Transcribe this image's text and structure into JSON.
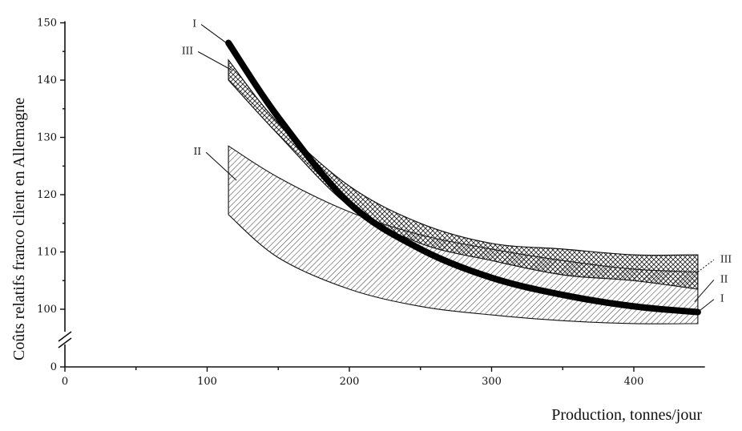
{
  "chart_data": {
    "type": "area",
    "xlabel": "Production, tonnes/jour",
    "ylabel": "Coûts relatifs franco client en Allemagne",
    "x_ticks": [
      "0",
      "100",
      "200",
      "300",
      "400"
    ],
    "y_ticks": [
      "0",
      "100",
      "110",
      "120",
      "130",
      "140",
      "150"
    ],
    "xlim": [
      0,
      450
    ],
    "ylim": [
      90,
      150
    ],
    "y_axis_break": true,
    "grid": false,
    "x": [
      115,
      150,
      200,
      250,
      300,
      350,
      400,
      445
    ],
    "series": [
      {
        "name": "I",
        "kind": "thick-line",
        "color": "#000000",
        "values": [
          146.5,
          133.5,
          118.5,
          110.5,
          105.5,
          102.5,
          100.5,
          99.5
        ]
      },
      {
        "name": "II",
        "kind": "band",
        "color": "#333333",
        "upper": [
          128.5,
          123,
          117,
          113,
          110.5,
          108.5,
          107,
          106.5
        ],
        "lower": [
          116.5,
          109,
          103.5,
          100.5,
          99,
          98,
          97.5,
          97.5
        ]
      },
      {
        "name": "III",
        "kind": "band",
        "color": "#333333",
        "upper": [
          143.5,
          132.5,
          121.5,
          115,
          111.5,
          110.5,
          109.5,
          109.5
        ],
        "lower": [
          140,
          130.5,
          118,
          111.5,
          108.5,
          106,
          105,
          103.5
        ]
      }
    ],
    "labels": {
      "left": [
        "I",
        "III",
        "II"
      ],
      "right": [
        "III",
        "II",
        "I"
      ]
    }
  }
}
